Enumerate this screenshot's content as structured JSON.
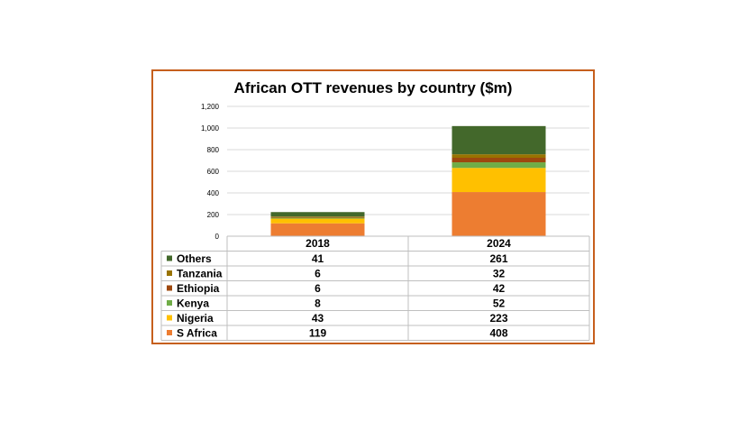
{
  "chart_data": {
    "type": "bar",
    "stacked": true,
    "title": "African OTT revenues by country ($m)",
    "categories": [
      "2018",
      "2024"
    ],
    "ylim": [
      0,
      1200
    ],
    "yticks": [
      "0",
      "200",
      "400",
      "600",
      "800",
      "1,000",
      "1,200"
    ],
    "ytick_values": [
      0,
      200,
      400,
      600,
      800,
      1000,
      1200
    ],
    "grid": true,
    "legend": "data-table",
    "series": [
      {
        "name": "S Africa",
        "color": "#ed7d31",
        "values": [
          119,
          408
        ]
      },
      {
        "name": "Nigeria",
        "color": "#ffc000",
        "values": [
          43,
          223
        ]
      },
      {
        "name": "Kenya",
        "color": "#70ad47",
        "values": [
          8,
          52
        ]
      },
      {
        "name": "Ethiopia",
        "color": "#9e480e",
        "values": [
          6,
          42
        ]
      },
      {
        "name": "Tanzania",
        "color": "#997300",
        "values": [
          6,
          32
        ]
      },
      {
        "name": "Others",
        "color": "#43682b",
        "values": [
          41,
          261
        ]
      }
    ],
    "table_rows": [
      {
        "label": "Others",
        "color": "#43682b",
        "values": [
          "41",
          "261"
        ]
      },
      {
        "label": "Tanzania",
        "color": "#997300",
        "values": [
          "6",
          "32"
        ]
      },
      {
        "label": "Ethiopia",
        "color": "#9e480e",
        "values": [
          "6",
          "42"
        ]
      },
      {
        "label": "Kenya",
        "color": "#70ad47",
        "values": [
          "8",
          "52"
        ]
      },
      {
        "label": "Nigeria",
        "color": "#ffc000",
        "values": [
          "43",
          "223"
        ]
      },
      {
        "label": "S Africa",
        "color": "#ed7d31",
        "values": [
          "119",
          "408"
        ]
      }
    ]
  },
  "colors": {
    "frame_border": "#c65f1d",
    "grid": "#d9d9d9"
  }
}
